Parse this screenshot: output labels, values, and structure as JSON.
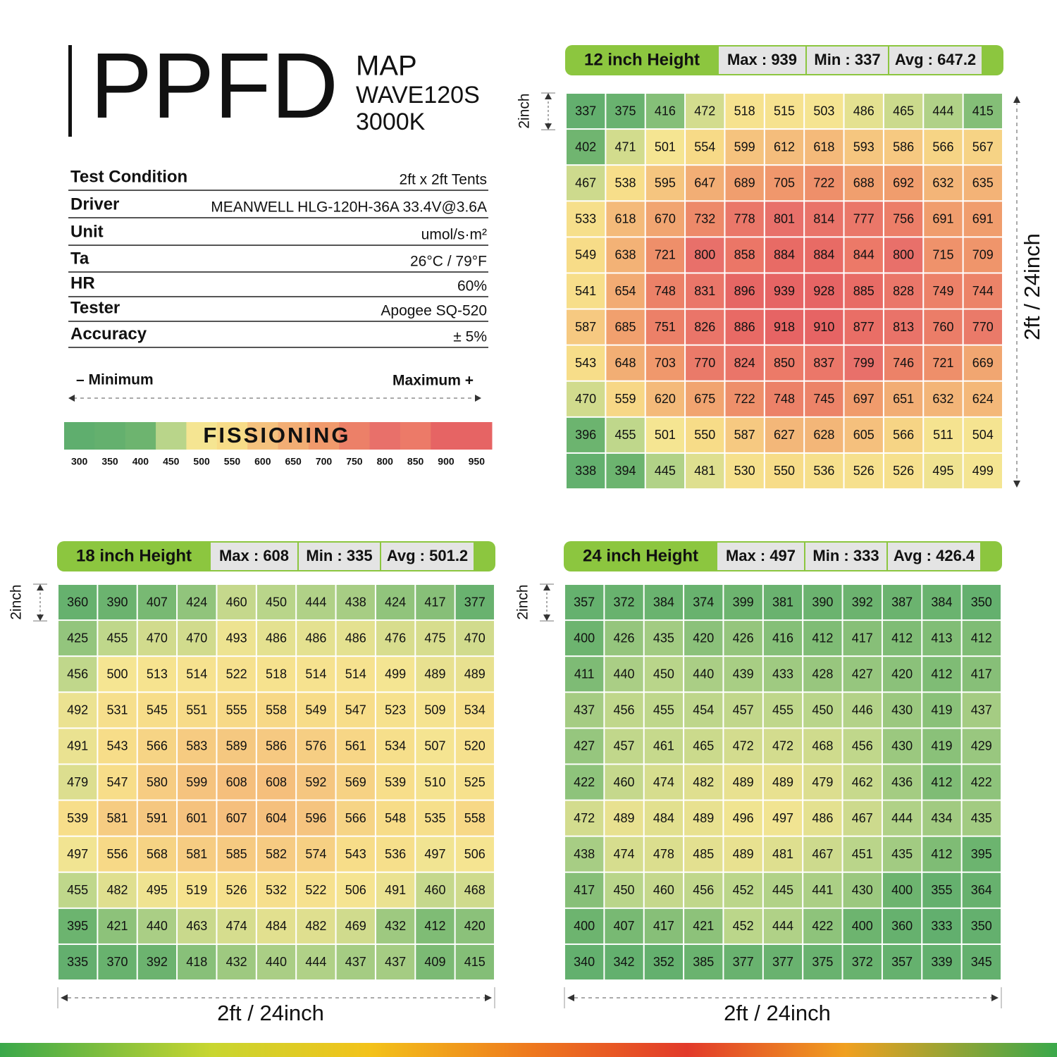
{
  "header": {
    "title": "PPFD",
    "subtitle": [
      "MAP",
      "WAVE120S",
      "3000K"
    ]
  },
  "conditions": [
    [
      "Test Condition",
      "2ft x 2ft Tents"
    ],
    [
      "Driver",
      "MEANWELL HLG-120H-36A 33.4V@3.6A"
    ],
    [
      "Unit",
      "umol/s·m²"
    ],
    [
      "Ta",
      "26°C / 79°F"
    ],
    [
      "HR",
      "60%"
    ],
    [
      "Tester",
      "Apogee SQ-520"
    ],
    [
      "Accuracy",
      "± 5%"
    ]
  ],
  "legend": {
    "minimum": "– Minimum",
    "maximum": "Maximum +",
    "band_label": "FISSIONING",
    "ticks": [
      300,
      350,
      400,
      450,
      500,
      550,
      600,
      650,
      700,
      750,
      800,
      850,
      900,
      950
    ],
    "colors": [
      "#5fae6e",
      "#64b06e",
      "#6db46f",
      "#b9d58a",
      "#f5e592",
      "#f7dc88",
      "#f5c27e",
      "#f2ad74",
      "#f09a6c",
      "#ec8068",
      "#e8706a",
      "#ec7a68",
      "#e66464",
      "#e66464"
    ]
  },
  "maps": [
    {
      "height": "12 inch Height",
      "max": "Max : 939",
      "min": "Min : 337",
      "avg": "Avg : 647.2",
      "cell_label": "2inch",
      "size_label": "2ft / 24inch",
      "grid": [
        [
          337,
          375,
          416,
          472,
          518,
          515,
          503,
          486,
          465,
          444,
          415
        ],
        [
          402,
          471,
          501,
          554,
          599,
          612,
          618,
          593,
          586,
          566,
          567
        ],
        [
          467,
          538,
          595,
          647,
          689,
          705,
          722,
          688,
          692,
          632,
          635
        ],
        [
          533,
          618,
          670,
          732,
          778,
          801,
          814,
          777,
          756,
          691,
          691
        ],
        [
          549,
          638,
          721,
          800,
          858,
          884,
          884,
          844,
          800,
          715,
          709
        ],
        [
          541,
          654,
          748,
          831,
          896,
          939,
          928,
          885,
          828,
          749,
          744
        ],
        [
          587,
          685,
          751,
          826,
          886,
          918,
          910,
          877,
          813,
          760,
          770
        ],
        [
          543,
          648,
          703,
          770,
          824,
          850,
          837,
          799,
          746,
          721,
          669
        ],
        [
          470,
          559,
          620,
          675,
          722,
          748,
          745,
          697,
          651,
          632,
          624
        ],
        [
          396,
          455,
          501,
          550,
          587,
          627,
          628,
          605,
          566,
          511,
          504
        ],
        [
          338,
          394,
          445,
          481,
          530,
          550,
          536,
          526,
          526,
          495,
          499
        ]
      ]
    },
    {
      "height": "18 inch Height",
      "max": "Max : 608",
      "min": "Min : 335",
      "avg": "Avg : 501.2",
      "cell_label": "2inch",
      "size_label": "2ft / 24inch",
      "grid": [
        [
          360,
          390,
          407,
          424,
          460,
          450,
          444,
          438,
          424,
          417,
          377
        ],
        [
          425,
          455,
          470,
          470,
          493,
          486,
          486,
          486,
          476,
          475,
          470
        ],
        [
          456,
          500,
          513,
          514,
          522,
          518,
          514,
          514,
          499,
          489,
          489
        ],
        [
          492,
          531,
          545,
          551,
          555,
          558,
          549,
          547,
          523,
          509,
          534
        ],
        [
          491,
          543,
          566,
          583,
          589,
          586,
          576,
          561,
          534,
          507,
          520
        ],
        [
          479,
          547,
          580,
          599,
          608,
          608,
          592,
          569,
          539,
          510,
          525
        ],
        [
          539,
          581,
          591,
          601,
          607,
          604,
          596,
          566,
          548,
          535,
          558
        ],
        [
          497,
          556,
          568,
          581,
          585,
          582,
          574,
          543,
          536,
          497,
          506
        ],
        [
          455,
          482,
          495,
          519,
          526,
          532,
          522,
          506,
          491,
          460,
          468
        ],
        [
          395,
          421,
          440,
          463,
          474,
          484,
          482,
          469,
          432,
          412,
          420
        ],
        [
          335,
          370,
          392,
          418,
          432,
          440,
          444,
          437,
          437,
          409,
          415
        ]
      ]
    },
    {
      "height": "24 inch Height",
      "max": "Max : 497",
      "min": "Min : 333",
      "avg": "Avg : 426.4",
      "cell_label": "2inch",
      "size_label": "2ft / 24inch",
      "grid": [
        [
          357,
          372,
          384,
          374,
          399,
          381,
          390,
          392,
          387,
          384,
          350
        ],
        [
          400,
          426,
          435,
          420,
          426,
          416,
          412,
          417,
          412,
          413,
          412
        ],
        [
          411,
          440,
          450,
          440,
          439,
          433,
          428,
          427,
          420,
          412,
          417
        ],
        [
          437,
          456,
          455,
          454,
          457,
          455,
          450,
          446,
          430,
          419,
          437
        ],
        [
          427,
          457,
          461,
          465,
          472,
          472,
          468,
          456,
          430,
          419,
          429
        ],
        [
          422,
          460,
          474,
          482,
          489,
          489,
          479,
          462,
          436,
          412,
          422
        ],
        [
          472,
          489,
          484,
          489,
          496,
          497,
          486,
          467,
          444,
          434,
          435
        ],
        [
          438,
          474,
          478,
          485,
          489,
          481,
          467,
          451,
          435,
          412,
          395
        ],
        [
          417,
          450,
          460,
          456,
          452,
          445,
          441,
          430,
          400,
          355,
          364
        ],
        [
          400,
          407,
          417,
          421,
          452,
          444,
          422,
          400,
          360,
          333,
          350
        ],
        [
          340,
          342,
          352,
          385,
          377,
          377,
          375,
          372,
          357,
          339,
          345
        ]
      ]
    }
  ]
}
